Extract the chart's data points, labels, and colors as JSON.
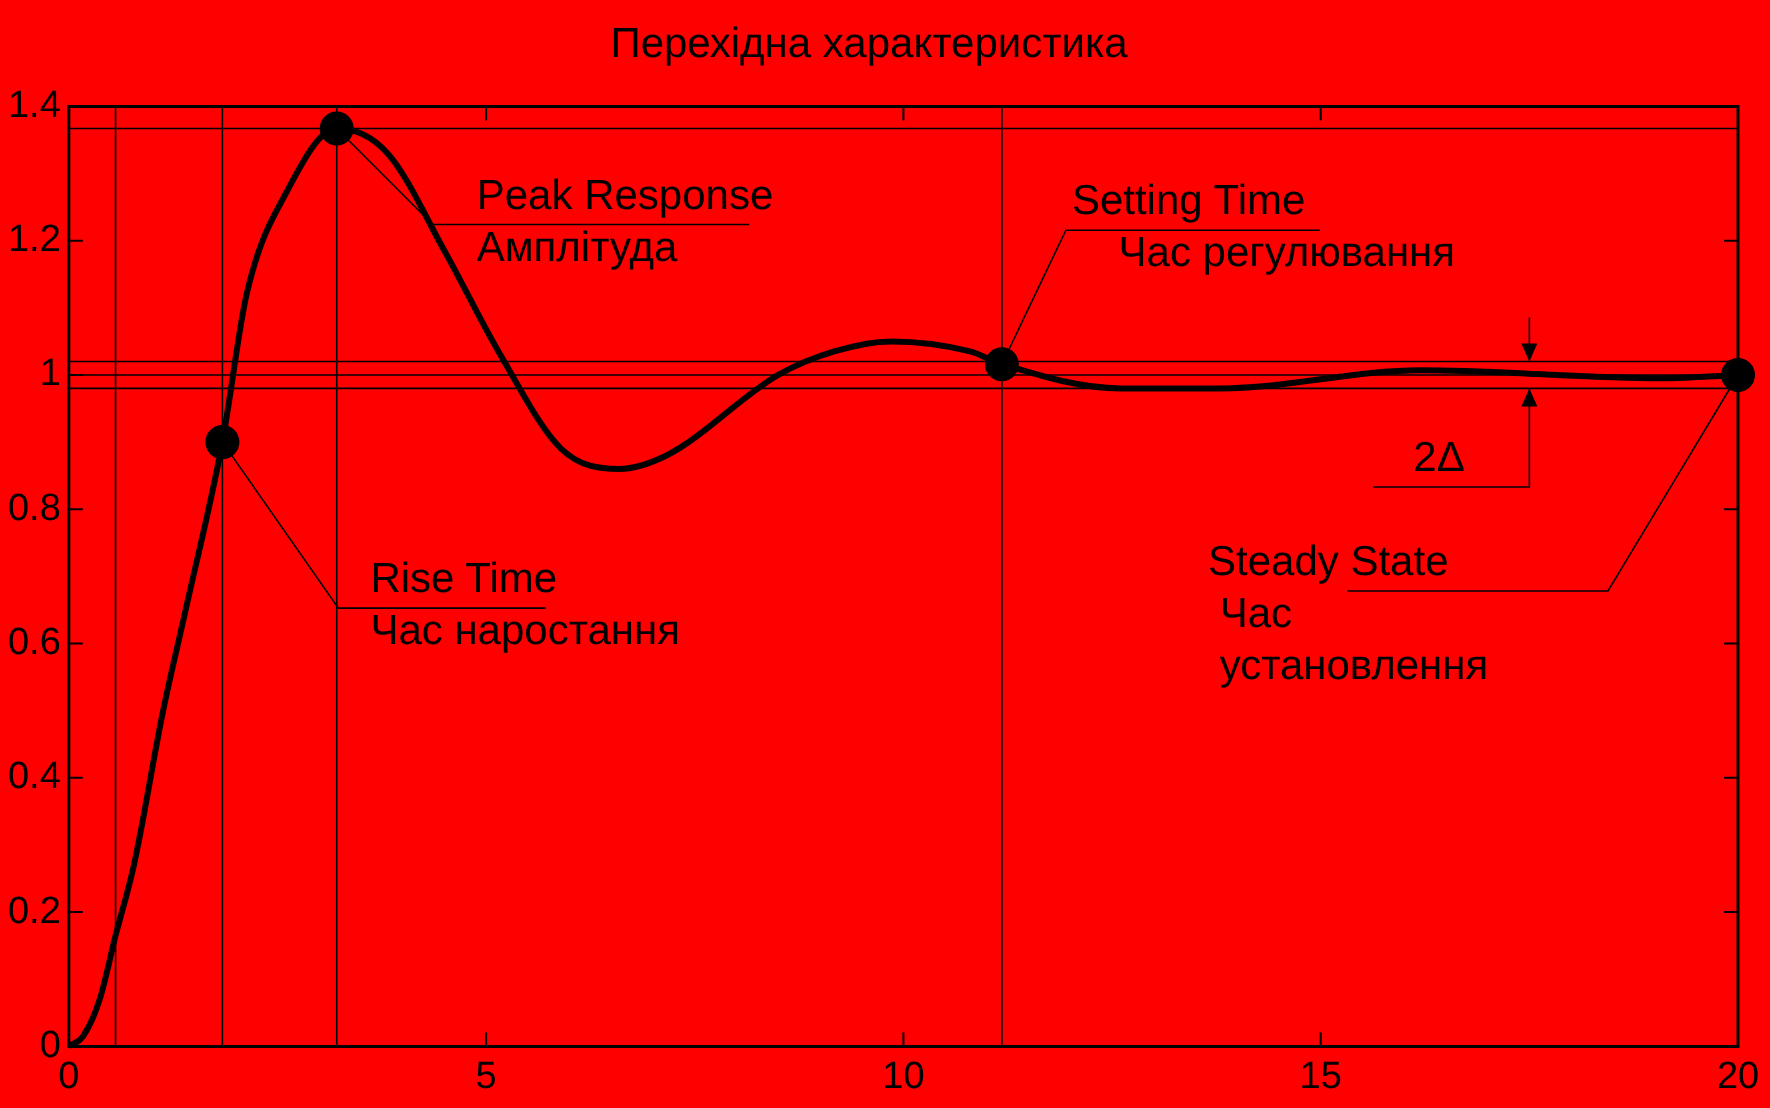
{
  "chart_data": {
    "type": "line",
    "title": "Перехідна характеристика",
    "xlim": [
      0,
      20
    ],
    "xticks": [
      0,
      5,
      10,
      15,
      20
    ],
    "ylim": [
      0,
      1.4
    ],
    "yticks": [
      0,
      0.2,
      0.4,
      0.6,
      0.8,
      1,
      1.2,
      1.4
    ],
    "grid": false,
    "legend": false,
    "series": [
      {
        "color": "#000000",
        "marker": "none",
        "x": [
          0,
          0.17,
          0.37,
          0.56,
          0.78,
          1.13,
          1.4,
          1.84,
          2.13,
          2.62,
          3.21,
          3.82,
          4.5,
          5.17,
          5.9,
          6.59,
          7.16,
          8.5,
          9.17,
          9.85,
          10.8,
          11.18,
          12.6,
          13.8,
          16.2,
          19.1,
          20
        ],
        "values": [
          0,
          0.015,
          0.07,
          0.165,
          0.27,
          0.5,
          0.65,
          0.9,
          1.12,
          1.275,
          1.367,
          1.33,
          1.185,
          1.03,
          0.89,
          0.86,
          0.88,
          1.0,
          1.035,
          1.05,
          1.035,
          1.016,
          0.98,
          0.98,
          1.007,
          0.995,
          1.0
        ]
      },
      {
        "type": "scatter",
        "color": "#000000",
        "marker": "circle",
        "x": [
          1.84,
          3.21,
          11.18,
          20
        ],
        "values": [
          0.9,
          1.367,
          1.016,
          1.0
        ]
      }
    ],
    "ref_lines": [
      {
        "axis": "y",
        "value": 1.02,
        "color": "#000000"
      },
      {
        "axis": "y",
        "value": 1,
        "color": "#000000"
      },
      {
        "axis": "y",
        "value": 0.98,
        "color": "#000000"
      },
      {
        "axis": "y",
        "value": 1.367,
        "color": "#000000"
      },
      {
        "axis": "x",
        "value": 0.56,
        "color": "#000000"
      },
      {
        "axis": "x",
        "value": 1.84,
        "color": "#000000"
      },
      {
        "axis": "x",
        "value": 3.21,
        "color": "#000000"
      },
      {
        "axis": "x",
        "value": 11.18,
        "color": "#000000"
      }
    ],
    "annotations": [
      {
        "text": "Peak Response\nАмплітуда",
        "x": 3.21,
        "y": 1.367
      },
      {
        "text": "Rise Time\nЧас наростання",
        "x": 1.84,
        "y": 0.9
      },
      {
        "text": "Setting Time\n    Час регулювання",
        "x": 11.18,
        "y": 1.016
      },
      {
        "text": "Steady State\n Час\n установлення",
        "x": 20,
        "y": 1.0
      },
      {
        "text": "2Δ",
        "x": 17.5,
        "y": 1.0
      }
    ]
  }
}
